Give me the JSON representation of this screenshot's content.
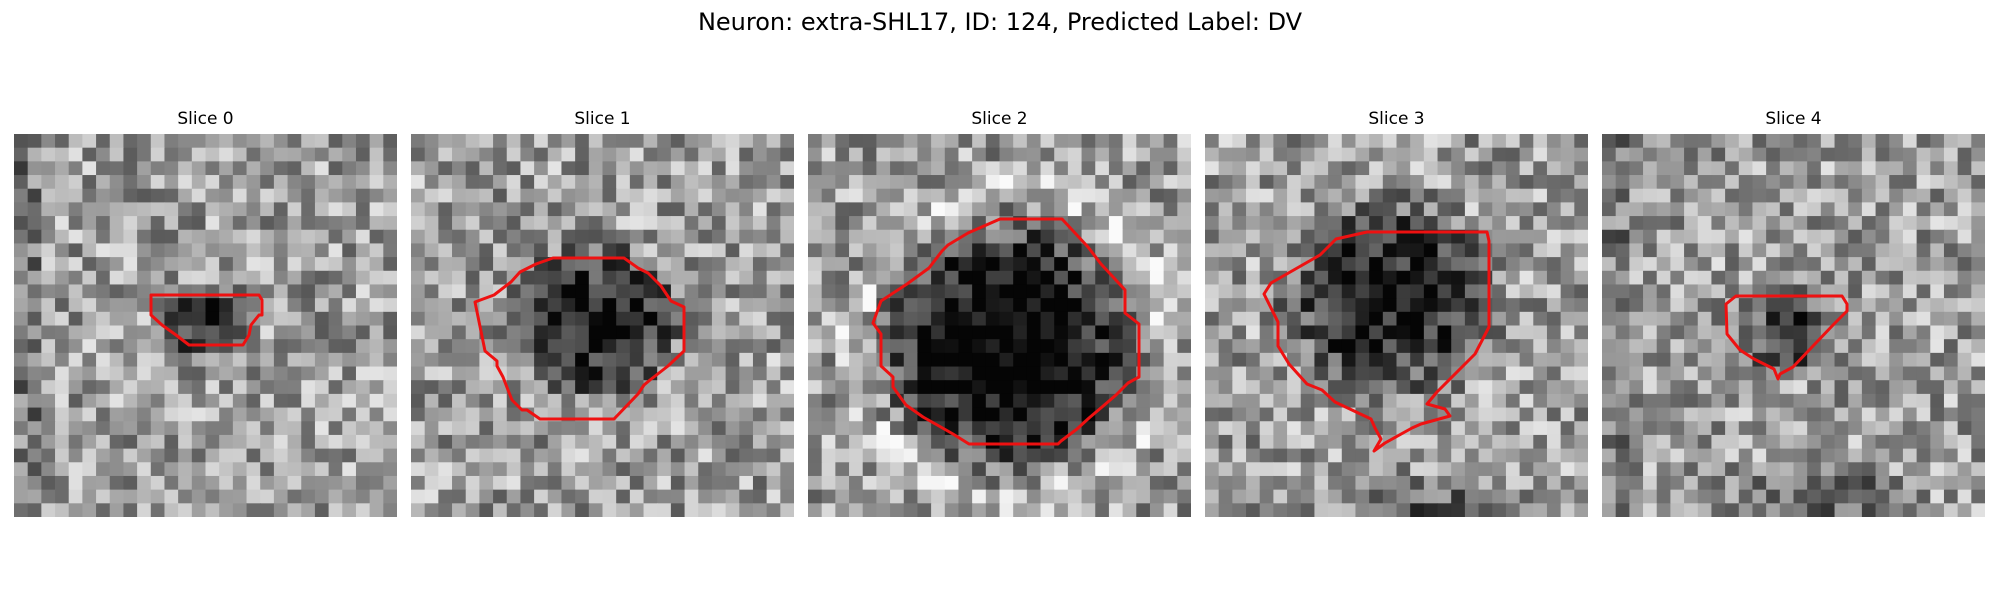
{
  "figure": {
    "title": "Neuron: extra-SHL17, ID: 124, Predicted Label: DV"
  },
  "colors": {
    "contour": "#ee1111",
    "background": "#ffffff"
  },
  "panels": [
    {
      "title": "Slice 0"
    },
    {
      "title": "Slice 1"
    },
    {
      "title": "Slice 2"
    },
    {
      "title": "Slice 3"
    },
    {
      "title": "Slice 4"
    }
  ]
}
